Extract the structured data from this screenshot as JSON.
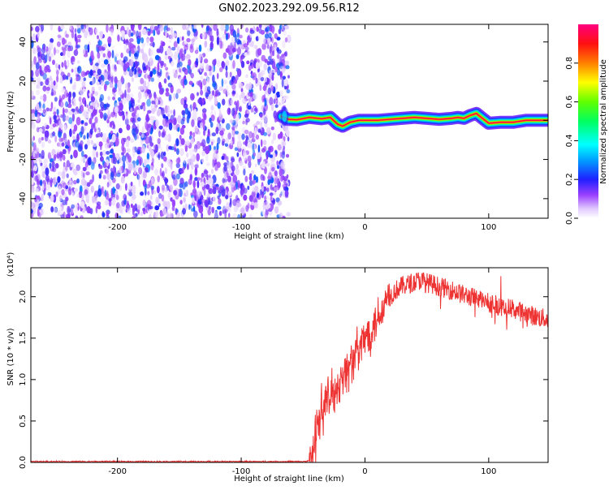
{
  "title": "GN02.2023.292.09.56.R12",
  "chart_data": [
    {
      "type": "heatmap",
      "xlabel": "Height of straight line (km)",
      "ylabel": "Frequency (Hz)",
      "xlim": [
        -270,
        148
      ],
      "ylim": [
        -50,
        49
      ],
      "x_ticks": [
        -200,
        -100,
        0,
        100
      ],
      "y_ticks": [
        -40,
        -20,
        0,
        20,
        40
      ],
      "noise_region": {
        "x": [
          -270,
          -64
        ],
        "y": [
          -50,
          49
        ],
        "amplitude_approx": [
          0.1,
          0.3
        ]
      },
      "blank_region_x": [
        -64,
        148
      ],
      "signal_line": {
        "x": [
          -67,
          -62,
          -55,
          -45,
          -35,
          -28,
          -22,
          -18,
          -12,
          -5,
          0,
          10,
          20,
          30,
          40,
          50,
          60,
          70,
          75,
          80,
          85,
          90,
          95,
          100,
          110,
          120,
          130,
          140,
          148
        ],
        "freq": [
          2,
          0.5,
          0.3,
          1.5,
          0.8,
          1.5,
          -2,
          -3,
          -1,
          0,
          0,
          0,
          0.5,
          1,
          1.5,
          1,
          0.5,
          1,
          1.5,
          1,
          2.5,
          3.5,
          1,
          -1.5,
          -1,
          -1,
          0,
          0,
          0
        ],
        "peak_amplitude_approx": 0.95
      },
      "colorbar": {
        "label": "Normalized spectral amplitude",
        "range": [
          0.0,
          1.0
        ],
        "ticks": [
          0.0,
          0.2,
          0.4,
          0.6,
          0.8
        ]
      }
    },
    {
      "type": "line",
      "xlabel": "Height of straight line (km)",
      "ylabel": "SNR (10 * v/v)",
      "y_multiplier": "(x10⁴)",
      "xlim": [
        -270,
        148
      ],
      "ylim": [
        0,
        2.35
      ],
      "x_ticks": [
        -200,
        -100,
        0,
        100
      ],
      "y_ticks": [
        0.0,
        0.5,
        1.0,
        1.5,
        2.0
      ],
      "color": "#ee3333",
      "series": [
        {
          "x": [
            -270,
            -200,
            -100,
            -50,
            -45,
            -42,
            -40,
            -38,
            -35,
            -30,
            -25,
            -20,
            -15,
            -10,
            -5,
            0,
            5,
            10,
            15,
            20,
            25,
            30,
            35,
            40,
            45,
            50,
            55,
            60,
            70,
            80,
            90,
            100,
            110,
            120,
            130,
            140,
            148
          ],
          "y": [
            0.01,
            0.01,
            0.01,
            0.01,
            0.02,
            0.05,
            0.3,
            0.55,
            0.65,
            0.75,
            0.85,
            1.0,
            1.1,
            1.25,
            1.35,
            1.5,
            1.62,
            1.75,
            1.9,
            2.0,
            2.08,
            2.13,
            2.15,
            2.18,
            2.2,
            2.17,
            2.15,
            2.12,
            2.08,
            2.02,
            1.98,
            1.93,
            1.88,
            1.85,
            1.8,
            1.75,
            1.73
          ]
        }
      ]
    }
  ]
}
